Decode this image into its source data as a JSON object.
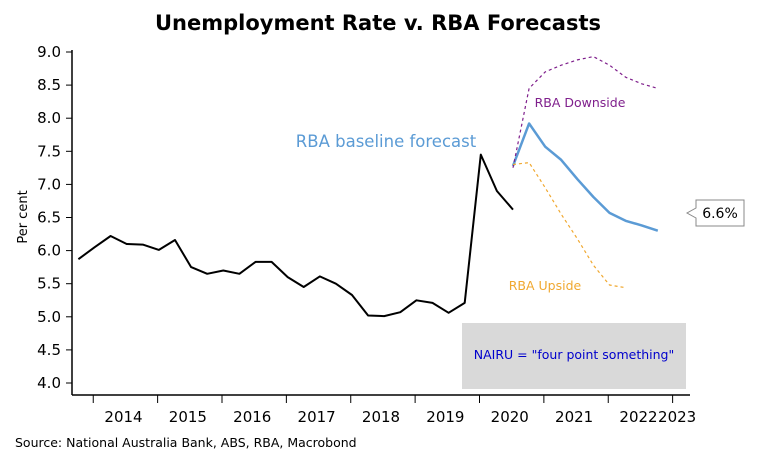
{
  "chart_data": {
    "type": "line",
    "title": "Unemployment Rate v. RBA Forecasts",
    "ylabel": "Per cent",
    "xlabel": "",
    "source": "Source: National Australia Bank, ABS, RBA, Macrobond",
    "ylim": [
      4.0,
      9.0
    ],
    "yticks": [
      "4.0",
      "4.5",
      "5.0",
      "5.5",
      "6.0",
      "6.5",
      "7.0",
      "7.5",
      "8.0",
      "8.5",
      "9.0"
    ],
    "xlim": [
      2013.65,
      2023.25
    ],
    "xticks": [
      "2014",
      "2015",
      "2016",
      "2017",
      "2018",
      "2019",
      "2020",
      "2021",
      "2022",
      "2023"
    ],
    "grid": false,
    "colors": {
      "actual": "#000000",
      "baseline": "#5b9bd5",
      "downside": "#7f1f8c",
      "upside": "#f0a830",
      "nairu_box": "#d9d9d9",
      "nairu_text": "#0000cc"
    },
    "series": [
      {
        "name": "Unemployment rate",
        "style": "solid",
        "x": [
          2013.75,
          2014.0,
          2014.25,
          2014.5,
          2014.75,
          2015.0,
          2015.25,
          2015.5,
          2015.75,
          2016.0,
          2016.25,
          2016.5,
          2016.75,
          2017.0,
          2017.25,
          2017.5,
          2017.75,
          2018.0,
          2018.25,
          2018.5,
          2018.75,
          2019.0,
          2019.25,
          2019.5,
          2019.75,
          2020.0,
          2020.25,
          2020.5,
          2020.75
        ],
        "y": [
          5.87,
          6.05,
          6.22,
          6.1,
          6.09,
          6.01,
          6.16,
          5.75,
          5.65,
          5.7,
          5.65,
          5.83,
          5.83,
          5.6,
          5.45,
          5.61,
          5.5,
          5.33,
          5.02,
          5.01,
          5.07,
          5.25,
          5.21,
          5.06,
          5.21,
          7.45,
          6.9,
          6.62,
          null
        ]
      },
      {
        "name": "RBA baseline forecast",
        "style": "solid",
        "x": [
          2020.5,
          2020.75,
          2021.0,
          2021.25,
          2021.5,
          2021.75,
          2022.0,
          2022.25,
          2022.5,
          2022.75
        ],
        "y": [
          7.28,
          7.92,
          7.57,
          7.37,
          7.08,
          6.81,
          6.57,
          6.45,
          6.38,
          6.3
        ]
      },
      {
        "name": "RBA Downside",
        "style": "dashed",
        "x": [
          2020.5,
          2020.75,
          2021.0,
          2021.25,
          2021.5,
          2021.75,
          2022.0,
          2022.25,
          2022.5,
          2022.75
        ],
        "y": [
          7.25,
          8.45,
          8.7,
          8.8,
          8.88,
          8.93,
          8.8,
          8.62,
          8.52,
          8.45
        ]
      },
      {
        "name": "RBA Upside",
        "style": "dashed",
        "x": [
          2020.5,
          2020.75,
          2021.0,
          2021.25,
          2021.5,
          2021.75,
          2022.0,
          2022.25
        ],
        "y": [
          7.3,
          7.33,
          6.95,
          6.55,
          6.18,
          5.78,
          5.48,
          5.44
        ]
      }
    ],
    "annotations": {
      "baseline_label": "RBA baseline forecast",
      "downside_label": "RBA Downside",
      "upside_label": "RBA Upside",
      "nairu_label": "NAIRU = \"four point something\"",
      "callout_value": "6.6%"
    }
  }
}
